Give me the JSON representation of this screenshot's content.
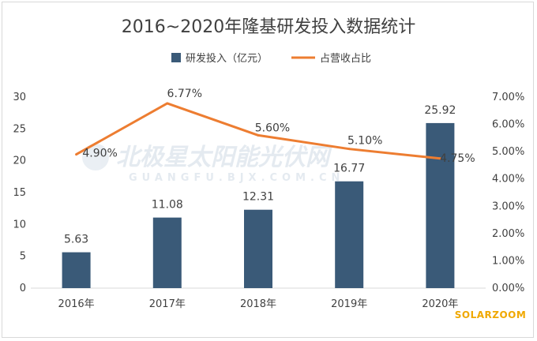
{
  "chart_data": {
    "type": "bar",
    "title": "2016~2020年隆基研发投入数据统计",
    "categories": [
      "2016年",
      "2017年",
      "2018年",
      "2019年",
      "2020年"
    ],
    "series": [
      {
        "name": "研发投入（亿元）",
        "kind": "bar",
        "axis": "left",
        "color": "#3a5a78",
        "values": [
          5.63,
          11.08,
          12.31,
          16.77,
          25.92
        ],
        "labels": [
          "5.63",
          "11.08",
          "12.31",
          "16.77",
          "25.92"
        ]
      },
      {
        "name": "占营收占比",
        "kind": "line",
        "axis": "right",
        "color": "#ed7d31",
        "values": [
          4.9,
          6.77,
          5.6,
          5.1,
          4.75
        ],
        "labels": [
          "4.90%",
          "6.77%",
          "5.60%",
          "5.10%",
          "4.75%"
        ]
      }
    ],
    "y_left": {
      "min": 0,
      "max": 30,
      "ticks": [
        "0",
        "5",
        "10",
        "15",
        "20",
        "25",
        "30"
      ]
    },
    "y_right": {
      "min": 0,
      "max": 7,
      "ticks": [
        "0.00%",
        "1.00%",
        "2.00%",
        "3.00%",
        "4.00%",
        "5.00%",
        "6.00%",
        "7.00%"
      ]
    },
    "grid": false,
    "legend_position": "top-center"
  },
  "watermark": {
    "text": "北极星太阳能光伏网",
    "subtext": "GUANGFU.BJX.COM.CN"
  },
  "brand": "SOLARZOOM",
  "colors": {
    "brand": "#f0a800"
  }
}
